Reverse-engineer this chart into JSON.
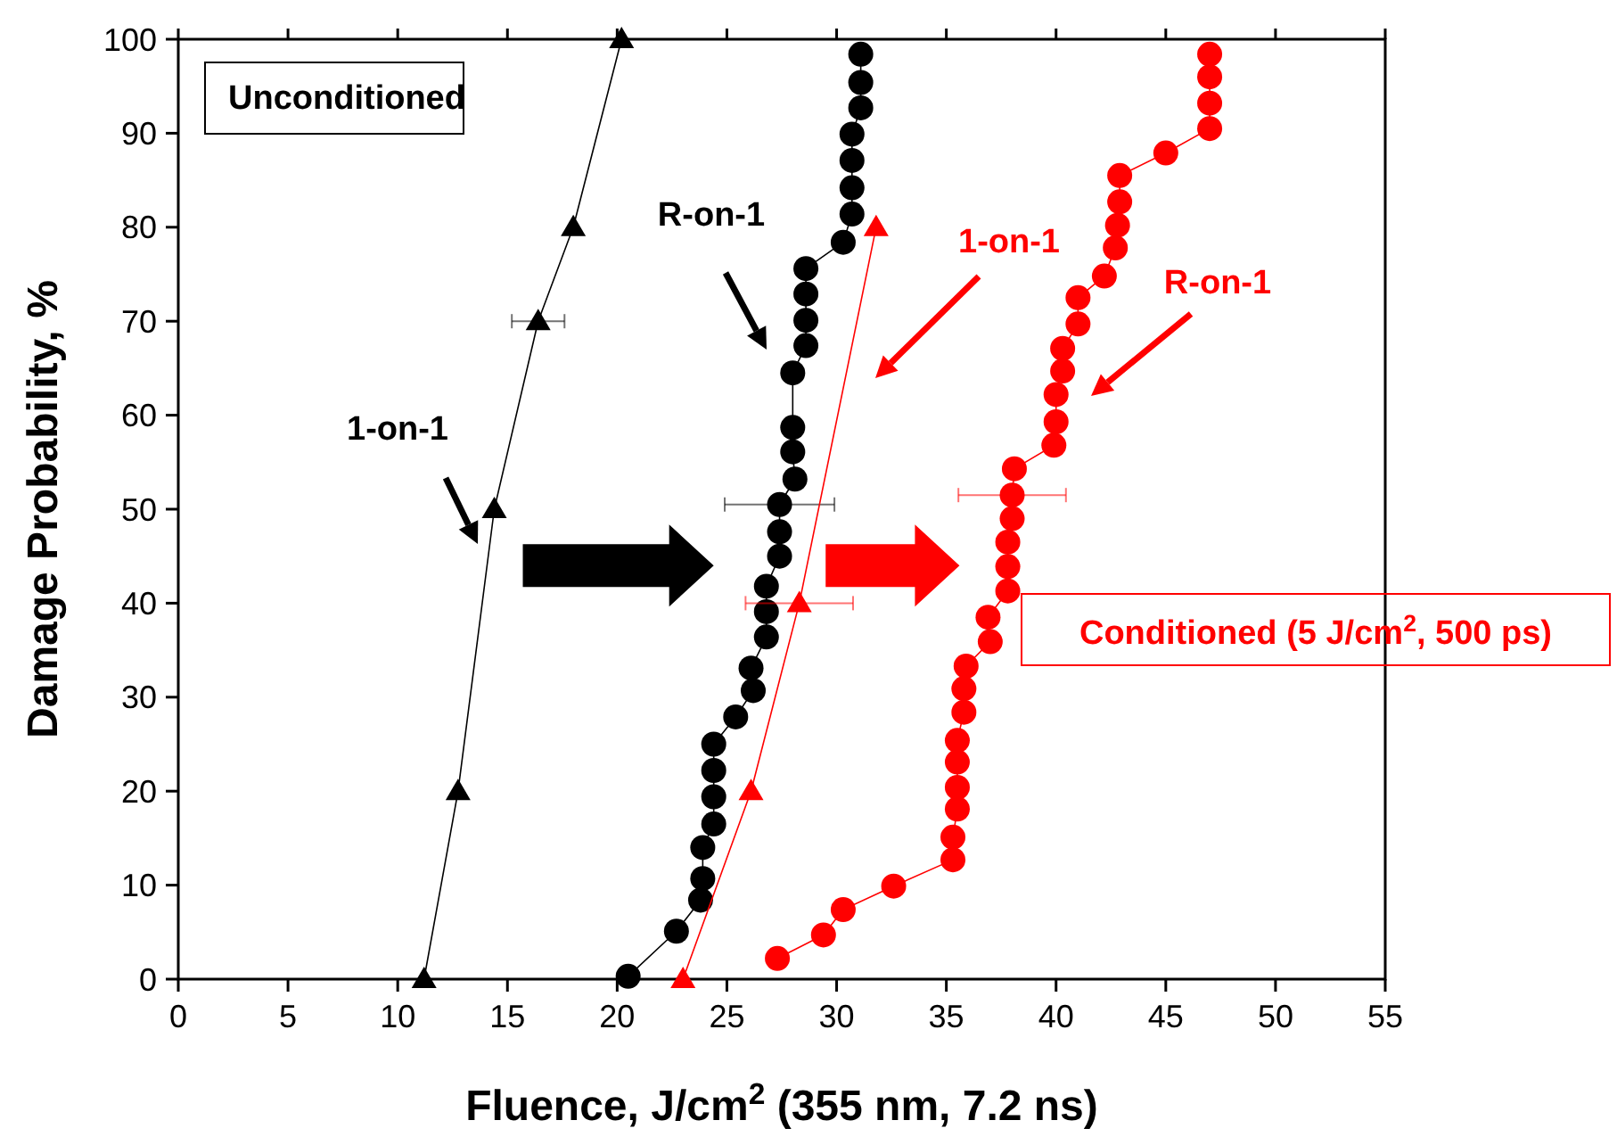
{
  "chart_data": {
    "type": "line",
    "xlabel": "Fluence, J/cm$^{2}$ (355 nm, 7.2 ns)",
    "ylabel": "Damage Probability, %",
    "xlim": [
      0,
      55
    ],
    "ylim": [
      0,
      100
    ],
    "xticks": [
      0,
      5,
      10,
      15,
      20,
      25,
      30,
      35,
      40,
      45,
      50,
      55
    ],
    "yticks": [
      0,
      10,
      20,
      30,
      40,
      50,
      60,
      70,
      80,
      90,
      100
    ],
    "series": [
      {
        "marker": "triangle",
        "color": "#000000",
        "x": [
          11.2,
          12.75,
          14.4,
          16.4,
          18.0,
          20.2
        ],
        "values": [
          0,
          20,
          50,
          70,
          80,
          100
        ],
        "xerrors": [
          null,
          null,
          null,
          1.2,
          null,
          null
        ]
      },
      {
        "marker": "circle",
        "color": "#000000",
        "x": [
          20.5,
          22.7,
          23.8,
          23.9,
          23.9,
          24.4,
          24.4,
          24.4,
          24.4,
          25.4,
          26.2,
          26.1,
          26.8,
          26.8,
          26.8,
          27.4,
          27.4,
          27.4,
          28.1,
          28.0,
          28.0,
          28.0,
          28.6,
          28.6,
          28.6,
          28.6,
          30.3,
          30.7,
          30.7,
          30.7,
          30.7,
          31.1,
          31.1,
          31.1
        ],
        "values": [
          0.3,
          5.1,
          8.4,
          10.7,
          14.0,
          16.5,
          19.4,
          22.2,
          25.0,
          27.9,
          30.7,
          33.1,
          36.4,
          39.1,
          41.8,
          45.0,
          47.6,
          50.5,
          53.2,
          56.1,
          58.7,
          64.5,
          67.4,
          70.1,
          72.9,
          75.6,
          78.4,
          81.4,
          84.2,
          87.1,
          89.9,
          92.7,
          95.4,
          98.4
        ],
        "xerrors": [
          null,
          null,
          null,
          null,
          null,
          null,
          null,
          null,
          null,
          null,
          null,
          null,
          null,
          null,
          null,
          null,
          null,
          2.5,
          null,
          null,
          null,
          null,
          null,
          null,
          null,
          null,
          null,
          null,
          null,
          null,
          null,
          null,
          null,
          null
        ]
      },
      {
        "marker": "triangle",
        "color": "#ff0000",
        "x": [
          23.0,
          26.1,
          28.3,
          31.8
        ],
        "values": [
          0,
          20,
          40,
          80
        ],
        "xerrors": [
          null,
          null,
          2.45,
          null
        ]
      },
      {
        "marker": "circle",
        "color": "#ff0000",
        "x": [
          27.3,
          29.4,
          30.3,
          32.6,
          35.3,
          35.3,
          35.5,
          35.5,
          35.5,
          35.5,
          35.8,
          35.8,
          35.9,
          37.0,
          36.9,
          37.8,
          37.8,
          37.8,
          38.0,
          38.0,
          38.1,
          39.9,
          40.0,
          40.0,
          40.3,
          40.3,
          41.0,
          41.0,
          42.2,
          42.7,
          42.8,
          42.9,
          42.9,
          45.0,
          47.0,
          47.0,
          47.0,
          47.0
        ],
        "values": [
          2.2,
          4.7,
          7.4,
          9.9,
          12.7,
          15.1,
          18.1,
          20.4,
          23.1,
          25.4,
          28.4,
          30.9,
          33.3,
          35.9,
          38.5,
          41.3,
          43.9,
          46.5,
          49.0,
          51.5,
          54.3,
          56.8,
          59.3,
          62.2,
          64.7,
          67.1,
          69.7,
          72.5,
          74.8,
          77.8,
          80.2,
          82.7,
          85.5,
          87.9,
          90.5,
          93.2,
          96.0,
          98.4
        ],
        "xerrors": [
          null,
          null,
          null,
          null,
          null,
          null,
          null,
          null,
          null,
          null,
          null,
          null,
          null,
          null,
          null,
          null,
          null,
          null,
          null,
          2.45,
          null,
          null,
          null,
          null,
          null,
          null,
          null,
          null,
          null,
          null,
          null,
          null,
          null,
          null,
          null,
          null,
          null,
          null
        ]
      }
    ],
    "annotations": [
      "1-on-1",
      "R-on-1",
      "1-on-1",
      "R-on-1",
      "Unconditioned",
      "Conditioned (5 J/cm$^{2}$, 500 ps)"
    ]
  }
}
